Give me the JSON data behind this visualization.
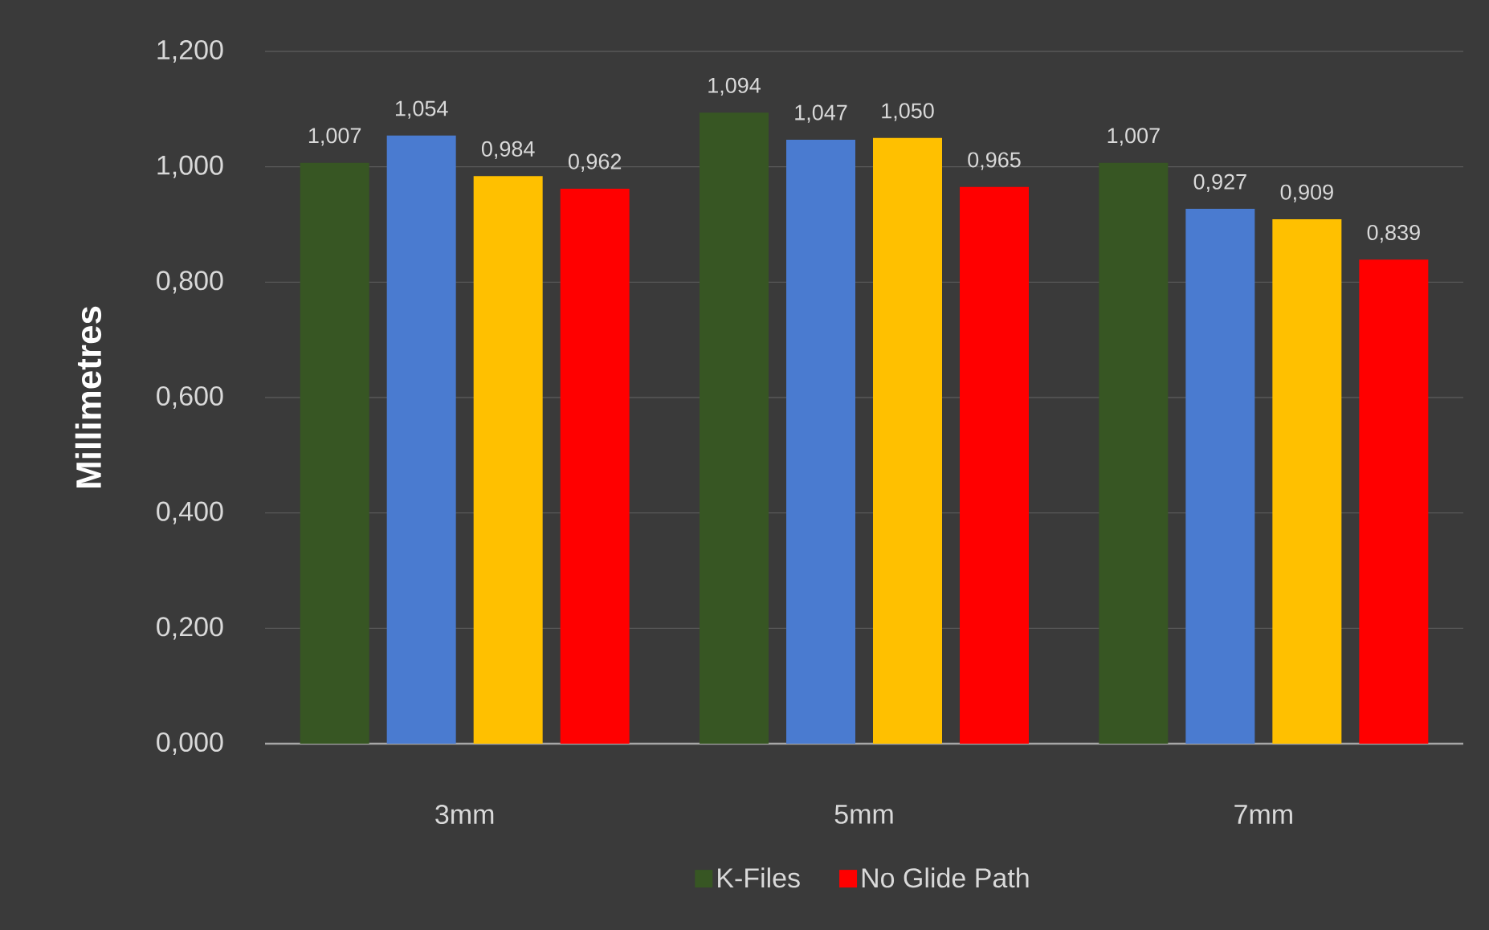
{
  "chart_data": {
    "type": "bar",
    "categories": [
      "3mm",
      "5mm",
      "7mm"
    ],
    "ylabel": "Millimetres",
    "ylim": [
      0,
      1.2
    ],
    "yticks": [
      {
        "value": 0,
        "label": "0,000"
      },
      {
        "value": 0.2,
        "label": "0,200"
      },
      {
        "value": 0.4,
        "label": "0,400"
      },
      {
        "value": 0.6,
        "label": "0,600"
      },
      {
        "value": 0.8,
        "label": "0,800"
      },
      {
        "value": 1.0,
        "label": "1,000"
      },
      {
        "value": 1.2,
        "label": "1,200"
      }
    ],
    "grid": "y",
    "legend": "bottom",
    "series": [
      {
        "name": "K-Files",
        "color": "#375623",
        "values": [
          1.007,
          1.094,
          1.007
        ],
        "value_labels": [
          "1,007",
          "1,094",
          "1,007"
        ]
      },
      {
        "color": "#4a7bd0",
        "values": [
          1.054,
          1.047,
          0.927
        ],
        "value_labels": [
          "1,054",
          "1,047",
          "0,927"
        ]
      },
      {
        "color": "#ffc000",
        "values": [
          0.984,
          1.05,
          0.909
        ],
        "value_labels": [
          "0,984",
          "1,050",
          "0,909"
        ]
      },
      {
        "name": "No Glide Path",
        "color": "#ff0000",
        "values": [
          0.962,
          0.965,
          0.839
        ],
        "value_labels": [
          "0,962",
          "0,965",
          "0,839"
        ]
      }
    ]
  }
}
